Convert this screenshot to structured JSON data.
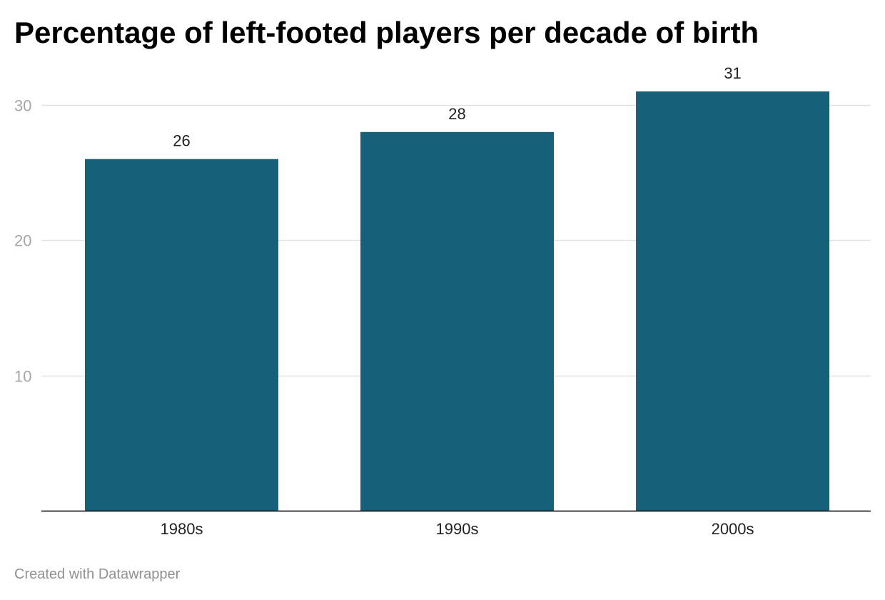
{
  "chart_data": {
    "type": "bar",
    "title": "Percentage of left-footed players per decade of birth",
    "categories": [
      "1980s",
      "1990s",
      "2000s"
    ],
    "values": [
      26,
      28,
      31
    ],
    "data_labels": [
      "26",
      "28",
      "31"
    ],
    "y_ticks": [
      10,
      20,
      30
    ],
    "y_tick_labels": [
      "10",
      "20",
      "30"
    ],
    "ylim": [
      0,
      31
    ],
    "xlabel": "",
    "ylabel": "",
    "grid": true,
    "legend": "none",
    "bar_color": "#17607a",
    "gridline_color": "#e2e2e2",
    "tick_label_color": "#a6a6a6"
  },
  "footer": {
    "credit": "Created with Datawrapper"
  }
}
